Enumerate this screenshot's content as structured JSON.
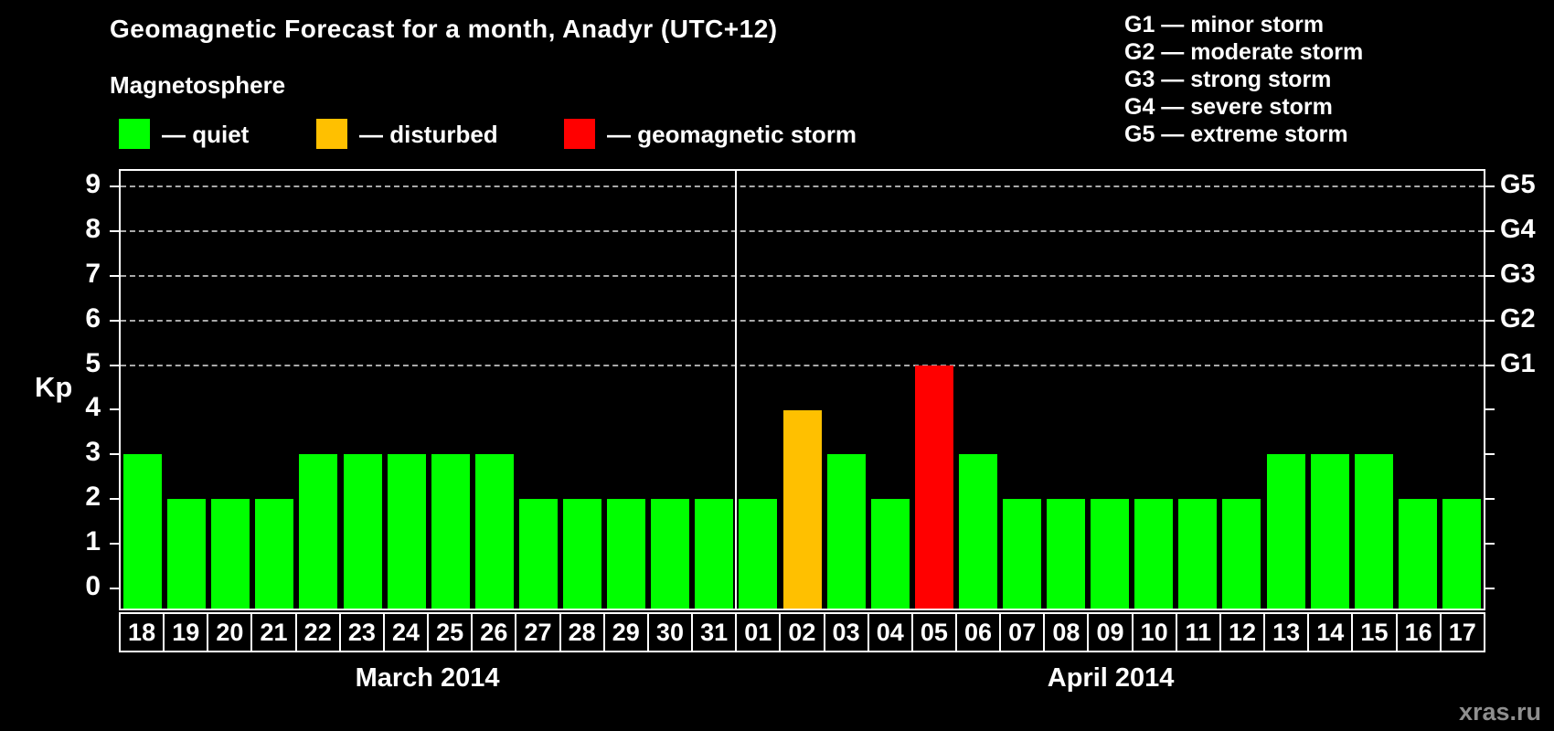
{
  "title": "Geomagnetic Forecast for a month, Anadyr (UTC+12)",
  "subtitle": "Magnetosphere",
  "legend": {
    "items": [
      {
        "name": "quiet",
        "label": "— quiet",
        "color": "#00ff00"
      },
      {
        "name": "disturbed",
        "label": "— disturbed",
        "color": "#ffc000"
      },
      {
        "name": "storm",
        "label": "— geomagnetic storm",
        "color": "#ff0000"
      }
    ]
  },
  "storm_scale": {
    "items": [
      {
        "code": "G1",
        "label": "G1 — minor storm",
        "kp": 5
      },
      {
        "code": "G2",
        "label": "G2 — moderate storm",
        "kp": 6
      },
      {
        "code": "G3",
        "label": "G3 — strong storm",
        "kp": 7
      },
      {
        "code": "G4",
        "label": "G4 — severe storm",
        "kp": 8
      },
      {
        "code": "G5",
        "label": "G5 — extreme storm",
        "kp": 9
      }
    ]
  },
  "watermark": "xras.ru",
  "chart_data": {
    "type": "bar",
    "title": "Geomagnetic Forecast for a month, Anadyr (UTC+12)",
    "xlabel": "",
    "ylabel": "Kp",
    "ylim": [
      -0.45,
      9.35
    ],
    "yticks": [
      0,
      1,
      2,
      3,
      4,
      5,
      6,
      7,
      8,
      9
    ],
    "grid_levels": [
      5,
      6,
      7,
      8,
      9
    ],
    "grid_on": true,
    "legend_position": "top",
    "months": [
      {
        "label": "March 2014",
        "days": 14
      },
      {
        "label": "April 2014",
        "days": 17
      }
    ],
    "categories": [
      "18",
      "19",
      "20",
      "21",
      "22",
      "23",
      "24",
      "25",
      "26",
      "27",
      "28",
      "29",
      "30",
      "31",
      "01",
      "02",
      "03",
      "04",
      "05",
      "06",
      "07",
      "08",
      "09",
      "10",
      "11",
      "12",
      "13",
      "14",
      "15",
      "16",
      "17"
    ],
    "values": [
      3,
      2,
      2,
      2,
      3,
      3,
      3,
      3,
      3,
      2,
      2,
      2,
      2,
      2,
      2,
      4,
      3,
      2,
      5,
      3,
      2,
      2,
      2,
      2,
      2,
      2,
      3,
      3,
      3,
      2,
      2
    ],
    "statuses": [
      "quiet",
      "quiet",
      "quiet",
      "quiet",
      "quiet",
      "quiet",
      "quiet",
      "quiet",
      "quiet",
      "quiet",
      "quiet",
      "quiet",
      "quiet",
      "quiet",
      "quiet",
      "disturbed",
      "quiet",
      "quiet",
      "storm",
      "quiet",
      "quiet",
      "quiet",
      "quiet",
      "quiet",
      "quiet",
      "quiet",
      "quiet",
      "quiet",
      "quiet",
      "quiet",
      "quiet"
    ],
    "status_colors": {
      "quiet": "#00ff00",
      "disturbed": "#ffc000",
      "storm": "#ff0000"
    }
  }
}
